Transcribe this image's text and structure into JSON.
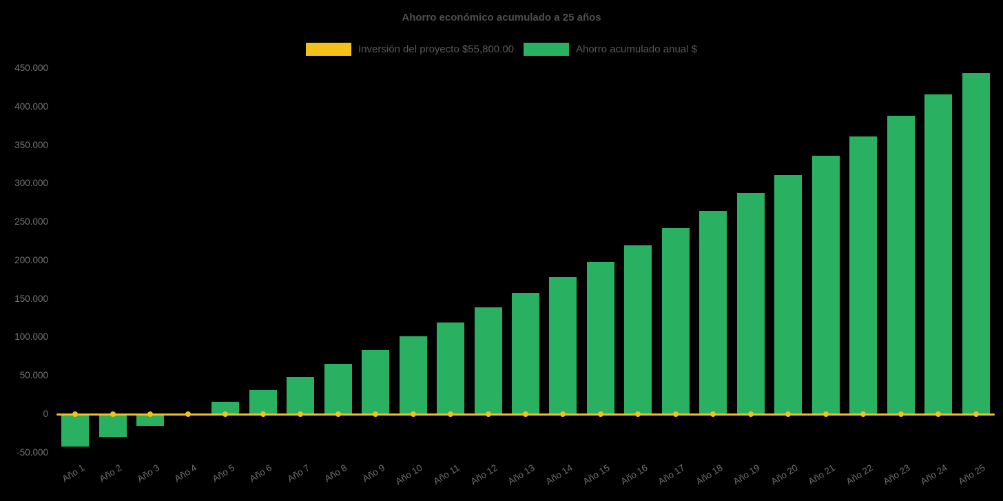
{
  "chart_data": {
    "type": "bar",
    "title": "Ahorro económico acumulado a 25 años",
    "categories": [
      "Año 1",
      "Año 2",
      "Año 3",
      "Año 4",
      "Año 5",
      "Año 6",
      "Año 7",
      "Año 8",
      "Año 9",
      "Año 10",
      "Año 11",
      "Año 12",
      "Año 13",
      "Año 14",
      "Año 15",
      "Año 16",
      "Año 17",
      "Año 18",
      "Año 19",
      "Año 20",
      "Año 21",
      "Año 22",
      "Año 23",
      "Año 24",
      "Año 25"
    ],
    "series": [
      {
        "name": "Inversión del proyecto $55,800.00",
        "type": "line",
        "color": "#f2c218",
        "values": [
          0,
          0,
          0,
          0,
          0,
          0,
          0,
          0,
          0,
          0,
          0,
          0,
          0,
          0,
          0,
          0,
          0,
          0,
          0,
          0,
          0,
          0,
          0,
          0,
          0
        ]
      },
      {
        "name": "Ahorro acumulado anual $",
        "type": "bar",
        "color": "#2ab061",
        "values": [
          -42000,
          -29500,
          -15500,
          -800,
          16500,
          31500,
          48000,
          65000,
          83000,
          101000,
          119500,
          138500,
          158000,
          178000,
          198500,
          220000,
          242000,
          264500,
          287500,
          311000,
          336000,
          361500,
          388000,
          415500,
          443500
        ]
      }
    ],
    "ylim": [
      -50000,
      450000
    ],
    "ytick_step": 50000,
    "ytick_labels": [
      "-50.000",
      "0",
      "50.000",
      "100.000",
      "150.000",
      "200.000",
      "250.000",
      "300.000",
      "350.000",
      "400.000",
      "450.000"
    ],
    "grid": false,
    "legend_position": "top",
    "investment_value_label": "$55,800.00"
  },
  "page": {
    "background": "#000000"
  }
}
